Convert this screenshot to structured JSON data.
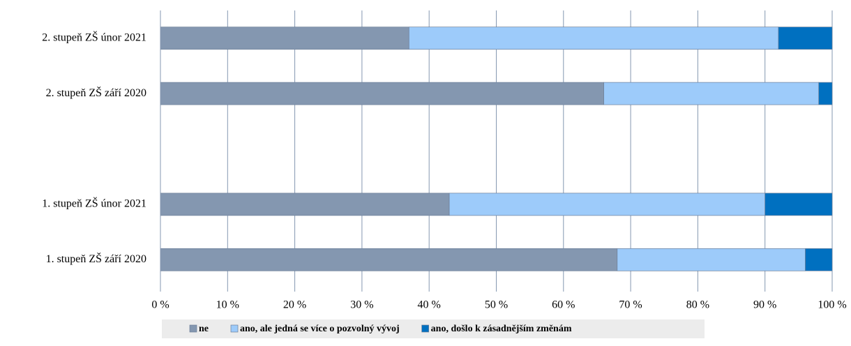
{
  "chart_data": {
    "type": "stacked_bar_horizontal",
    "categories": [
      "2. stupeň ZŠ únor 2021",
      "2. stupeň ZŠ září 2020",
      null,
      "1. stupeň ZŠ únor 2021",
      "1. stupeň ZŠ září 2020"
    ],
    "series": [
      {
        "name": "ne",
        "color": "#8497b0",
        "values": [
          37,
          66,
          null,
          43,
          68
        ]
      },
      {
        "name": "ano, ale jedná se více o pozvolný vývoj",
        "color": "#9dcbfa",
        "values": [
          55,
          32,
          null,
          47,
          28
        ]
      },
      {
        "name": "ano, došlo k zásadnějším změnám",
        "color": "#0070c0",
        "values": [
          8,
          2,
          null,
          10,
          4
        ]
      }
    ],
    "xlim": [
      0,
      100
    ],
    "xticks": [
      {
        "value": 0,
        "label": "0 %"
      },
      {
        "value": 10,
        "label": "10 %"
      },
      {
        "value": 20,
        "label": "20 %"
      },
      {
        "value": 30,
        "label": "30 %"
      },
      {
        "value": 40,
        "label": "40 %"
      },
      {
        "value": 50,
        "label": "50 %"
      },
      {
        "value": 60,
        "label": "60 %"
      },
      {
        "value": 70,
        "label": "70 %"
      },
      {
        "value": 80,
        "label": "80 %"
      },
      {
        "value": 90,
        "label": "90 %"
      },
      {
        "value": 100,
        "label": "100 %"
      }
    ],
    "grid": true,
    "legend": "bottom"
  }
}
